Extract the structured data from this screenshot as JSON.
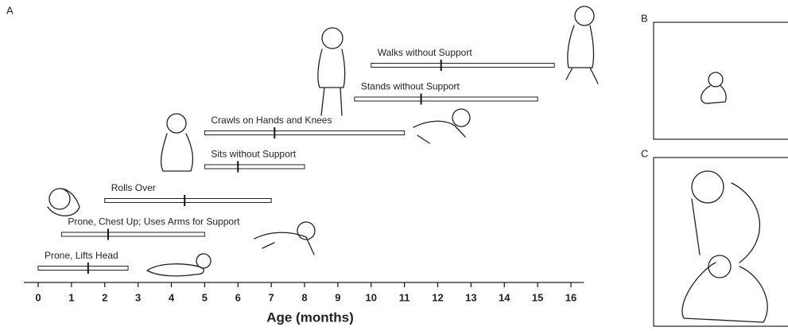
{
  "panels": [
    "A",
    "B",
    "C"
  ],
  "chart_data": {
    "type": "range",
    "xlabel": "Age (months)",
    "categories": [
      "Prone, Lifts Head",
      "Prone, Chest Up; Uses Arms for Support",
      "Rolls Over",
      "Sits without Support",
      "Crawls on Hands and Knees",
      "Stands without Support",
      "Walks without Support"
    ],
    "start": [
      0,
      0.7,
      2,
      5,
      5,
      9.5,
      10
    ],
    "end": [
      2.7,
      5,
      7,
      8,
      11,
      15,
      15.5
    ],
    "median": [
      1.5,
      2.1,
      4.4,
      6,
      7.1,
      11.5,
      12.1
    ],
    "xlim": [
      0,
      16
    ],
    "xticks": [
      0,
      1,
      2,
      3,
      4,
      5,
      6,
      7,
      8,
      9,
      10,
      11,
      12,
      13,
      14,
      15,
      16
    ]
  }
}
